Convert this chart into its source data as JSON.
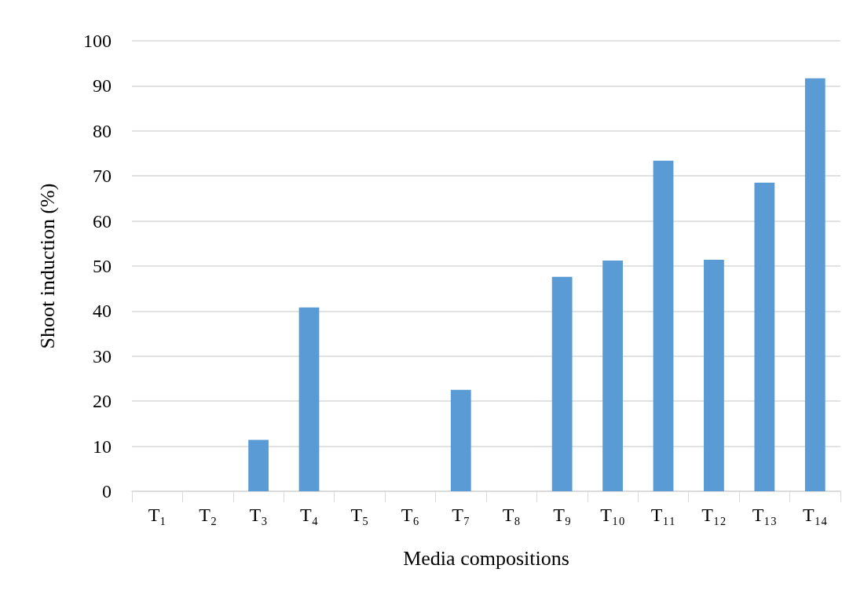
{
  "chart_data": {
    "type": "bar",
    "xlabel": "Media compositions",
    "ylabel": "Shoot induction (%)",
    "categories": [
      "T₁",
      "T₂",
      "T₃",
      "T₄",
      "T₅",
      "T₆",
      "T₇",
      "T₈",
      "T₉",
      "T₁₀",
      "T₁₁",
      "T₁₂",
      "T₁₃",
      "T₁₄"
    ],
    "values": [
      0,
      0,
      11.4,
      40.8,
      0,
      0,
      22.5,
      0,
      47.6,
      51.2,
      73.4,
      51.4,
      68.5,
      91.7
    ],
    "color": "#5b9bd5",
    "ylim": [
      0,
      100
    ],
    "yticks": [
      0,
      10,
      20,
      30,
      40,
      50,
      60,
      70,
      80,
      90,
      100
    ],
    "grid": "y"
  }
}
